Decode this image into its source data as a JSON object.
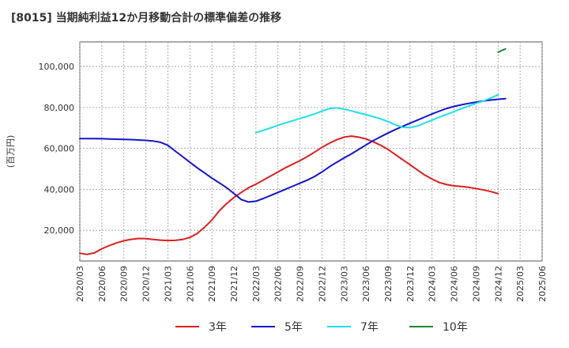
{
  "chart_data": {
    "type": "line",
    "title": "[8015]  当期純利益12か月移動合計の標準偏差の推移",
    "xlabel": "",
    "ylabel": "(百万円)",
    "ylim": [
      5000,
      112000
    ],
    "yticks": [
      20000,
      40000,
      60000,
      80000,
      100000
    ],
    "ytick_labels": [
      "20,000",
      "40,000",
      "60,000",
      "80,000",
      "100,000"
    ],
    "x_start": "2020/03",
    "x_end": "2025/06",
    "xtick_labels": [
      "2020/03",
      "2020/06",
      "2020/09",
      "2020/12",
      "2021/03",
      "2021/06",
      "2021/09",
      "2021/12",
      "2022/03",
      "2022/06",
      "2022/09",
      "2022/12",
      "2023/03",
      "2023/06",
      "2023/09",
      "2023/12",
      "2024/03",
      "2024/06",
      "2024/09",
      "2024/12",
      "2025/03",
      "2025/06"
    ],
    "grid": true,
    "legend_position": "bottom",
    "series": [
      {
        "name": "3年",
        "color": "#dd1f1f",
        "start": "2020/03",
        "values": [
          8800,
          8200,
          9000,
          11000,
          12500,
          13800,
          14900,
          15600,
          16000,
          15900,
          15500,
          15200,
          15000,
          15100,
          15500,
          16500,
          18500,
          21500,
          25000,
          29500,
          33000,
          36000,
          38500,
          40800,
          42500,
          44500,
          46500,
          48500,
          50500,
          52300,
          54000,
          56000,
          58200,
          60500,
          62500,
          64200,
          65500,
          66000,
          65500,
          64600,
          63200,
          61500,
          59500,
          57000,
          54500,
          52000,
          49500,
          47000,
          45000,
          43300,
          42300,
          41700,
          41400,
          41000,
          40400,
          39700,
          38900,
          37900
        ]
      },
      {
        "name": "5年",
        "color": "#1515cc",
        "start": "2020/03",
        "values": [
          64800,
          64800,
          64750,
          64700,
          64600,
          64500,
          64400,
          64300,
          64100,
          63900,
          63600,
          63000,
          61500,
          58700,
          56000,
          53200,
          50500,
          48000,
          45500,
          43200,
          40800,
          38000,
          35000,
          33800,
          34200,
          35500,
          37000,
          38500,
          40000,
          41500,
          43000,
          44500,
          46300,
          48500,
          51000,
          53200,
          55300,
          57300,
          59500,
          61700,
          63800,
          65700,
          67500,
          69200,
          70800,
          72300,
          73800,
          75300,
          76800,
          78200,
          79500,
          80500,
          81300,
          82000,
          82600,
          83200,
          83600,
          84000,
          84300
        ]
      },
      {
        "name": "7年",
        "color": "#22ddee",
        "start": "2022/03",
        "values": [
          67700,
          68800,
          70000,
          71200,
          72400,
          73500,
          74600,
          75700,
          76800,
          78200,
          79400,
          79800,
          79200,
          78300,
          77400,
          76500,
          75500,
          74400,
          73100,
          71500,
          70300,
          70200,
          70900,
          72400,
          73800,
          75300,
          76600,
          78000,
          79400,
          80700,
          82000,
          83200,
          84600,
          86200
        ]
      },
      {
        "name": "10年",
        "color": "#228833",
        "start": "2024/12",
        "values": [
          107000,
          108600
        ]
      }
    ]
  }
}
